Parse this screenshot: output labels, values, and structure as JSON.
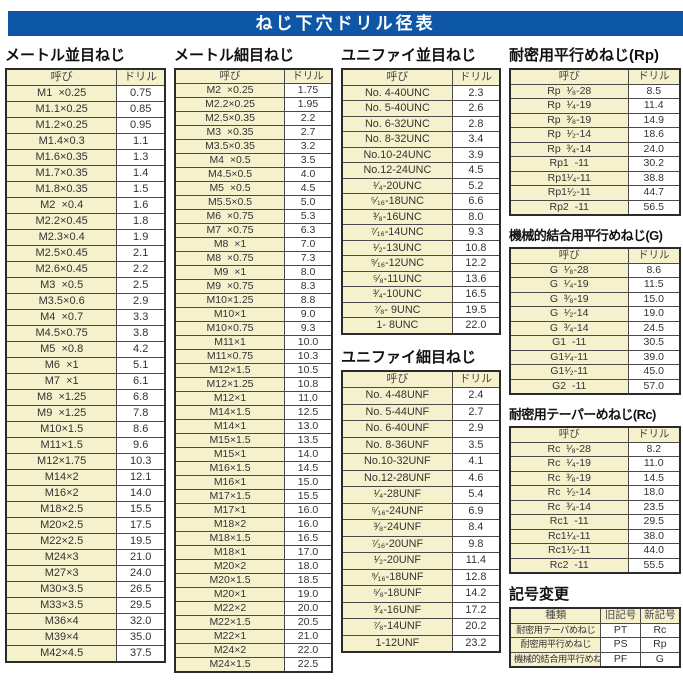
{
  "title": "ねじ下穴ドリル径表",
  "colors": {
    "title_bar_bg": "#0d57a6",
    "title_bar_text": "#ffffff",
    "cell_yellow": "#f6f1cd",
    "cell_white": "#ffffff",
    "border": "#4a4a4a",
    "outer_border": "#2b2b2b"
  },
  "sections": {
    "metric_coarse": {
      "title": "メートル並目ねじ",
      "headers": [
        "呼び",
        "ドリル"
      ],
      "rows": [
        [
          "M1  ×0.25",
          "0.75"
        ],
        [
          "M1.1×0.25",
          "0.85"
        ],
        [
          "M1.2×0.25",
          "0.95"
        ],
        [
          "M1.4×0.3",
          "1.1"
        ],
        [
          "M1.6×0.35",
          "1.3"
        ],
        [
          "M1.7×0.35",
          "1.4"
        ],
        [
          "M1.8×0.35",
          "1.5"
        ],
        [
          "M2  ×0.4",
          "1.6"
        ],
        [
          "M2.2×0.45",
          "1.8"
        ],
        [
          "M2.3×0.4",
          "1.9"
        ],
        [
          "M2.5×0.45",
          "2.1"
        ],
        [
          "M2.6×0.45",
          "2.2"
        ],
        [
          "M3  ×0.5",
          "2.5"
        ],
        [
          "M3.5×0.6",
          "2.9"
        ],
        [
          "M4  ×0.7",
          "3.3"
        ],
        [
          "M4.5×0.75",
          "3.8"
        ],
        [
          "M5  ×0.8",
          "4.2"
        ],
        [
          "M6  ×1",
          "5.1"
        ],
        [
          "M7  ×1",
          "6.1"
        ],
        [
          "M8  ×1.25",
          "6.8"
        ],
        [
          "M9  ×1.25",
          "7.8"
        ],
        [
          "M10×1.5",
          "8.6"
        ],
        [
          "M11×1.5",
          "9.6"
        ],
        [
          "M12×1.75",
          "10.3"
        ],
        [
          "M14×2",
          "12.1"
        ],
        [
          "M16×2",
          "14.0"
        ],
        [
          "M18×2.5",
          "15.5"
        ],
        [
          "M20×2.5",
          "17.5"
        ],
        [
          "M22×2.5",
          "19.5"
        ],
        [
          "M24×3",
          "21.0"
        ],
        [
          "M27×3",
          "24.0"
        ],
        [
          "M30×3.5",
          "26.5"
        ],
        [
          "M33×3.5",
          "29.5"
        ],
        [
          "M36×4",
          "32.0"
        ],
        [
          "M39×4",
          "35.0"
        ],
        [
          "M42×4.5",
          "37.5"
        ]
      ]
    },
    "metric_fine": {
      "title": "メートル細目ねじ",
      "headers": [
        "呼び",
        "ドリル"
      ],
      "rows": [
        [
          "M2  ×0.25",
          "1.75"
        ],
        [
          "M2.2×0.25",
          "1.95"
        ],
        [
          "M2.5×0.35",
          "2.2"
        ],
        [
          "M3  ×0.35",
          "2.7"
        ],
        [
          "M3.5×0.35",
          "3.2"
        ],
        [
          "M4  ×0.5",
          "3.5"
        ],
        [
          "M4.5×0.5",
          "4.0"
        ],
        [
          "M5  ×0.5",
          "4.5"
        ],
        [
          "M5.5×0.5",
          "5.0"
        ],
        [
          "M6  ×0.75",
          "5.3"
        ],
        [
          "M7  ×0.75",
          "6.3"
        ],
        [
          "M8  ×1",
          "7.0"
        ],
        [
          "M8  ×0.75",
          "7.3"
        ],
        [
          "M9  ×1",
          "8.0"
        ],
        [
          "M9  ×0.75",
          "8.3"
        ],
        [
          "M10×1.25",
          "8.8"
        ],
        [
          "M10×1",
          "9.0"
        ],
        [
          "M10×0.75",
          "9.3"
        ],
        [
          "M11×1",
          "10.0"
        ],
        [
          "M11×0.75",
          "10.3"
        ],
        [
          "M12×1.5",
          "10.5"
        ],
        [
          "M12×1.25",
          "10.8"
        ],
        [
          "M12×1",
          "11.0"
        ],
        [
          "M14×1.5",
          "12.5"
        ],
        [
          "M14×1",
          "13.0"
        ],
        [
          "M15×1.5",
          "13.5"
        ],
        [
          "M15×1",
          "14.0"
        ],
        [
          "M16×1.5",
          "14.5"
        ],
        [
          "M16×1",
          "15.0"
        ],
        [
          "M17×1.5",
          "15.5"
        ],
        [
          "M17×1",
          "16.0"
        ],
        [
          "M18×2",
          "16.0"
        ],
        [
          "M18×1.5",
          "16.5"
        ],
        [
          "M18×1",
          "17.0"
        ],
        [
          "M20×2",
          "18.0"
        ],
        [
          "M20×1.5",
          "18.5"
        ],
        [
          "M20×1",
          "19.0"
        ],
        [
          "M22×2",
          "20.0"
        ],
        [
          "M22×1.5",
          "20.5"
        ],
        [
          "M22×1",
          "21.0"
        ],
        [
          "M24×2",
          "22.0"
        ],
        [
          "M24×1.5",
          "22.5"
        ]
      ]
    },
    "unified_coarse": {
      "title": "ユニファイ並目ねじ",
      "headers": [
        "呼び",
        "ドリル"
      ],
      "rows": [
        [
          "No. 4-40UNC",
          "2.3"
        ],
        [
          "No. 5-40UNC",
          "2.6"
        ],
        [
          "No. 6-32UNC",
          "2.8"
        ],
        [
          "No. 8-32UNC",
          "3.4"
        ],
        [
          "No.10-24UNC",
          "3.9"
        ],
        [
          "No.12-24UNC",
          "4.5"
        ],
        [
          "¹⁄₄-20UNC",
          "5.2"
        ],
        [
          "⁵⁄₁₆-18UNC",
          "6.6"
        ],
        [
          "³⁄₈-16UNC",
          "8.0"
        ],
        [
          "⁷⁄₁₆-14UNC",
          "9.3"
        ],
        [
          "¹⁄₂-13UNC",
          "10.8"
        ],
        [
          "⁹⁄₁₆-12UNC",
          "12.2"
        ],
        [
          "⁵⁄₈-11UNC",
          "13.6"
        ],
        [
          "³⁄₄-10UNC",
          "16.5"
        ],
        [
          "⁷⁄₈- 9UNC",
          "19.5"
        ],
        [
          "1- 8UNC",
          "22.0"
        ]
      ]
    },
    "unified_fine": {
      "title": "ユニファイ細目ねじ",
      "headers": [
        "呼び",
        "ドリル"
      ],
      "rows": [
        [
          "No. 4-48UNF",
          "2.4"
        ],
        [
          "No. 5-44UNF",
          "2.7"
        ],
        [
          "No. 6-40UNF",
          "2.9"
        ],
        [
          "No. 8-36UNF",
          "3.5"
        ],
        [
          "No.10-32UNF",
          "4.1"
        ],
        [
          "No.12-28UNF",
          "4.6"
        ],
        [
          "¹⁄₄-28UNF",
          "5.4"
        ],
        [
          "⁵⁄₁₆-24UNF",
          "6.9"
        ],
        [
          "³⁄₈-24UNF",
          "8.4"
        ],
        [
          "⁷⁄₁₆-20UNF",
          "9.8"
        ],
        [
          "¹⁄₂-20UNF",
          "11.4"
        ],
        [
          "⁹⁄₁₆-18UNF",
          "12.8"
        ],
        [
          "⁵⁄₈-18UNF",
          "14.2"
        ],
        [
          "³⁄₄-16UNF",
          "17.2"
        ],
        [
          "⁷⁄₈-14UNF",
          "20.2"
        ],
        [
          "1-12UNF",
          "23.2"
        ]
      ]
    },
    "rp": {
      "title": "耐密用平行めねじ(Rp)",
      "headers": [
        "呼び",
        "ドリル"
      ],
      "rows": [
        [
          "Rp  ¹⁄₈-28",
          "8.5"
        ],
        [
          "Rp  ¹⁄₄-19",
          "11.4"
        ],
        [
          "Rp  ³⁄₈-19",
          "14.9"
        ],
        [
          "Rp  ¹⁄₂-14",
          "18.6"
        ],
        [
          "Rp  ³⁄₄-14",
          "24.0"
        ],
        [
          "Rp1  -11",
          "30.2"
        ],
        [
          "Rp1¹⁄₄-11",
          "38.8"
        ],
        [
          "Rp1¹⁄₂-11",
          "44.7"
        ],
        [
          "Rp2  -11",
          "56.5"
        ]
      ]
    },
    "g": {
      "title": "機械的結合用平行めねじ(G)",
      "headers": [
        "呼び",
        "ドリル"
      ],
      "rows": [
        [
          "G  ¹⁄₈-28",
          "8.6"
        ],
        [
          "G  ¹⁄₄-19",
          "11.5"
        ],
        [
          "G  ³⁄₈-19",
          "15.0"
        ],
        [
          "G  ¹⁄₂-14",
          "19.0"
        ],
        [
          "G  ³⁄₄-14",
          "24.5"
        ],
        [
          "G1  -11",
          "30.5"
        ],
        [
          "G1¹⁄₄-11",
          "39.0"
        ],
        [
          "G1¹⁄₂-11",
          "45.0"
        ],
        [
          "G2  -11",
          "57.0"
        ]
      ]
    },
    "rc": {
      "title": "耐密用テーパーめねじ(Rc)",
      "headers": [
        "呼び",
        "ドリル"
      ],
      "rows": [
        [
          "Rc  ¹⁄₈-28",
          "8.2"
        ],
        [
          "Rc  ¹⁄₄-19",
          "11.0"
        ],
        [
          "Rc  ³⁄₈-19",
          "14.5"
        ],
        [
          "Rc  ¹⁄₂-14",
          "18.0"
        ],
        [
          "Rc  ³⁄₄-14",
          "23.5"
        ],
        [
          "Rc1  -11",
          "29.5"
        ],
        [
          "Rc1¹⁄₄-11",
          "38.0"
        ],
        [
          "Rc1¹⁄₂-11",
          "44.0"
        ],
        [
          "Rc2  -11",
          "55.5"
        ]
      ]
    },
    "symbol_change": {
      "title": "記号変更",
      "headers": [
        "種類",
        "旧記号",
        "新記号"
      ],
      "rows": [
        [
          "耐密用テーパめねじ",
          "PT",
          "Rc"
        ],
        [
          "耐密用平行めねじ",
          "PS",
          "Rp"
        ],
        [
          "機械的結合用平行めねじ",
          "PF",
          "G"
        ]
      ]
    }
  }
}
